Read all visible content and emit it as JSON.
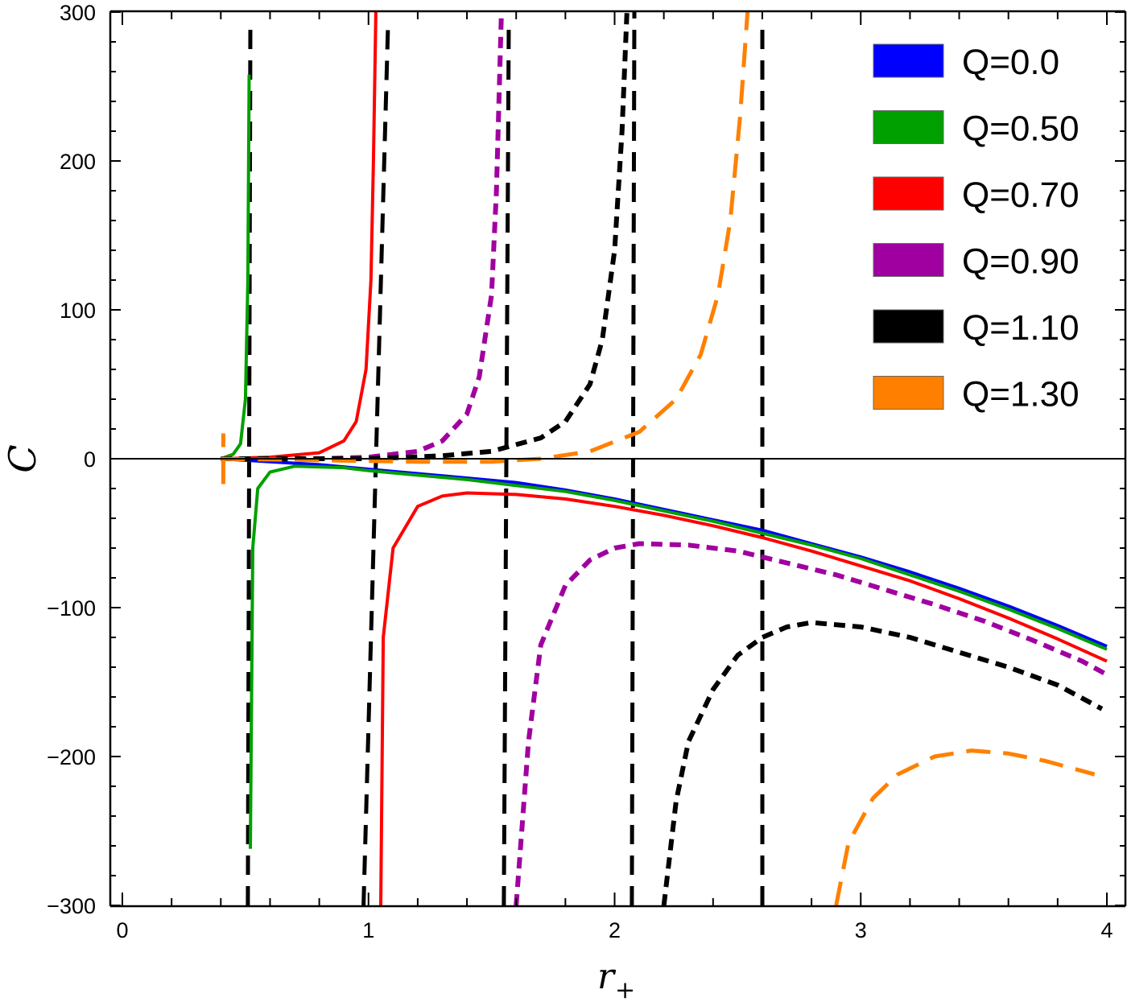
{
  "chart_data": {
    "type": "line",
    "title": "",
    "xlabel": "r",
    "xlabel_subscript": "+",
    "ylabel": "C",
    "xlim": [
      -0.05,
      4.08
    ],
    "ylim": [
      -300,
      300
    ],
    "x_ticks": [
      0,
      1,
      2,
      3,
      4
    ],
    "x_tick_labels": [
      "0",
      "1",
      "2",
      "3",
      "4"
    ],
    "y_ticks": [
      300,
      200,
      100,
      0,
      -100,
      -200,
      -300
    ],
    "y_tick_labels": [
      "300",
      "200",
      "100",
      "0",
      "−100",
      "−200",
      "−300"
    ],
    "grid": false,
    "legend_position": "top-right",
    "series": [
      {
        "name": "Q=0.0",
        "color": "#0000ff",
        "dash": "solid",
        "segments": [
          [
            [
              0.4,
              0
            ],
            [
              0.6,
              -2
            ],
            [
              0.8,
              -4
            ],
            [
              1.0,
              -7
            ],
            [
              1.2,
              -10
            ],
            [
              1.4,
              -13
            ],
            [
              1.6,
              -16
            ],
            [
              1.8,
              -21
            ],
            [
              2.0,
              -27
            ],
            [
              2.2,
              -34
            ],
            [
              2.4,
              -41
            ],
            [
              2.6,
              -48
            ],
            [
              2.8,
              -57
            ],
            [
              3.0,
              -66
            ],
            [
              3.2,
              -76
            ],
            [
              3.4,
              -87
            ],
            [
              3.6,
              -99
            ],
            [
              3.8,
              -112
            ],
            [
              4.0,
              -126
            ]
          ]
        ]
      },
      {
        "name": "Q=0.50",
        "color": "#00a000",
        "dash": "solid",
        "segments": [
          [
            [
              0.4,
              0
            ],
            [
              0.45,
              3
            ],
            [
              0.48,
              10
            ],
            [
              0.5,
              40
            ],
            [
              0.51,
              120
            ],
            [
              0.515,
              258
            ]
          ],
          [
            [
              0.52,
              -262
            ],
            [
              0.53,
              -60
            ],
            [
              0.55,
              -20
            ],
            [
              0.6,
              -9
            ],
            [
              0.7,
              -5
            ],
            [
              0.9,
              -6
            ],
            [
              1.0,
              -8
            ],
            [
              1.2,
              -11
            ],
            [
              1.4,
              -14
            ],
            [
              1.6,
              -18
            ],
            [
              1.8,
              -22
            ],
            [
              2.0,
              -28
            ],
            [
              2.2,
              -35
            ],
            [
              2.4,
              -42
            ],
            [
              2.6,
              -50
            ],
            [
              2.8,
              -58
            ],
            [
              3.0,
              -67
            ],
            [
              3.2,
              -78
            ],
            [
              3.4,
              -89
            ],
            [
              3.6,
              -101
            ],
            [
              3.8,
              -114
            ],
            [
              4.0,
              -128
            ]
          ]
        ]
      },
      {
        "name": "Q=0.70",
        "color": "#ff0000",
        "dash": "solid",
        "segments": [
          [
            [
              0.4,
              0
            ],
            [
              0.6,
              1
            ],
            [
              0.8,
              4
            ],
            [
              0.9,
              12
            ],
            [
              0.95,
              25
            ],
            [
              0.99,
              60
            ],
            [
              1.01,
              120
            ],
            [
              1.02,
              200
            ],
            [
              1.03,
              300
            ]
          ],
          [
            [
              1.05,
              -300
            ],
            [
              1.06,
              -120
            ],
            [
              1.1,
              -60
            ],
            [
              1.2,
              -32
            ],
            [
              1.3,
              -25
            ],
            [
              1.4,
              -23
            ],
            [
              1.6,
              -24
            ],
            [
              1.8,
              -27
            ],
            [
              2.0,
              -32
            ],
            [
              2.2,
              -38
            ],
            [
              2.4,
              -45
            ],
            [
              2.6,
              -53
            ],
            [
              2.8,
              -62
            ],
            [
              3.0,
              -72
            ],
            [
              3.2,
              -82
            ],
            [
              3.4,
              -94
            ],
            [
              3.6,
              -107
            ],
            [
              3.8,
              -121
            ],
            [
              4.0,
              -136
            ]
          ]
        ]
      },
      {
        "name": "Q=0.90",
        "color": "#a000a0",
        "dash": "medium",
        "segments": [
          [
            [
              0.4,
              0
            ],
            [
              0.8,
              0
            ],
            [
              1.0,
              1
            ],
            [
              1.2,
              5
            ],
            [
              1.3,
              12
            ],
            [
              1.4,
              30
            ],
            [
              1.45,
              55
            ],
            [
              1.5,
              110
            ],
            [
              1.52,
              180
            ],
            [
              1.54,
              300
            ]
          ],
          [
            [
              1.6,
              -300
            ],
            [
              1.65,
              -190
            ],
            [
              1.7,
              -125
            ],
            [
              1.8,
              -85
            ],
            [
              1.9,
              -68
            ],
            [
              2.0,
              -60
            ],
            [
              2.1,
              -57
            ],
            [
              2.3,
              -58
            ],
            [
              2.5,
              -62
            ],
            [
              2.7,
              -70
            ],
            [
              2.9,
              -78
            ],
            [
              3.1,
              -88
            ],
            [
              3.3,
              -98
            ],
            [
              3.5,
              -109
            ],
            [
              3.7,
              -122
            ],
            [
              3.9,
              -136
            ],
            [
              4.0,
              -145
            ]
          ]
        ]
      },
      {
        "name": "Q=1.10",
        "color": "#000000",
        "dash": "medium",
        "segments": [
          [
            [
              0.4,
              0
            ],
            [
              1.0,
              0
            ],
            [
              1.3,
              2
            ],
            [
              1.5,
              5
            ],
            [
              1.7,
              14
            ],
            [
              1.8,
              25
            ],
            [
              1.9,
              50
            ],
            [
              1.95,
              80
            ],
            [
              2.0,
              140
            ],
            [
              2.03,
              220
            ],
            [
              2.05,
              300
            ]
          ],
          [
            [
              2.2,
              -300
            ],
            [
              2.25,
              -230
            ],
            [
              2.3,
              -190
            ],
            [
              2.4,
              -155
            ],
            [
              2.5,
              -132
            ],
            [
              2.6,
              -120
            ],
            [
              2.7,
              -113
            ],
            [
              2.8,
              -110
            ],
            [
              3.0,
              -113
            ],
            [
              3.2,
              -120
            ],
            [
              3.4,
              -130
            ],
            [
              3.6,
              -140
            ],
            [
              3.8,
              -152
            ],
            [
              3.98,
              -168
            ]
          ]
        ]
      },
      {
        "name": "Q=1.30",
        "color": "#ff8000",
        "dash": "long",
        "segments": [
          [
            [
              0.41,
              -17
            ],
            [
              0.41,
              17
            ]
          ],
          [
            [
              0.4,
              0
            ],
            [
              0.8,
              -1
            ],
            [
              1.2,
              -2
            ],
            [
              1.5,
              -2
            ],
            [
              1.7,
              0
            ],
            [
              1.9,
              5
            ],
            [
              2.1,
              18
            ],
            [
              2.25,
              40
            ],
            [
              2.35,
              70
            ],
            [
              2.42,
              110
            ],
            [
              2.47,
              160
            ],
            [
              2.51,
              230
            ],
            [
              2.54,
              300
            ]
          ],
          [
            [
              2.9,
              -300
            ],
            [
              2.95,
              -258
            ],
            [
              3.05,
              -228
            ],
            [
              3.15,
              -212
            ],
            [
              3.3,
              -200
            ],
            [
              3.45,
              -196
            ],
            [
              3.6,
              -198
            ],
            [
              3.75,
              -203
            ],
            [
              3.95,
              -212
            ]
          ]
        ]
      }
    ],
    "asymptotes": [
      {
        "color": "#000000",
        "dash": "medium",
        "points": [
          [
            0.51,
            -300
          ],
          [
            0.52,
            290
          ]
        ]
      },
      {
        "color": "#000000",
        "dash": "medium",
        "points": [
          [
            0.98,
            -300
          ],
          [
            1.08,
            295
          ]
        ]
      },
      {
        "color": "#000000",
        "dash": "medium",
        "points": [
          [
            1.55,
            -300
          ],
          [
            1.57,
            290
          ]
        ]
      },
      {
        "color": "#000000",
        "dash": "medium",
        "points": [
          [
            2.07,
            -300
          ],
          [
            2.08,
            300
          ]
        ]
      },
      {
        "color": "#000000",
        "dash": "medium",
        "points": [
          [
            2.6,
            -300
          ],
          [
            2.6,
            295
          ]
        ]
      }
    ]
  }
}
